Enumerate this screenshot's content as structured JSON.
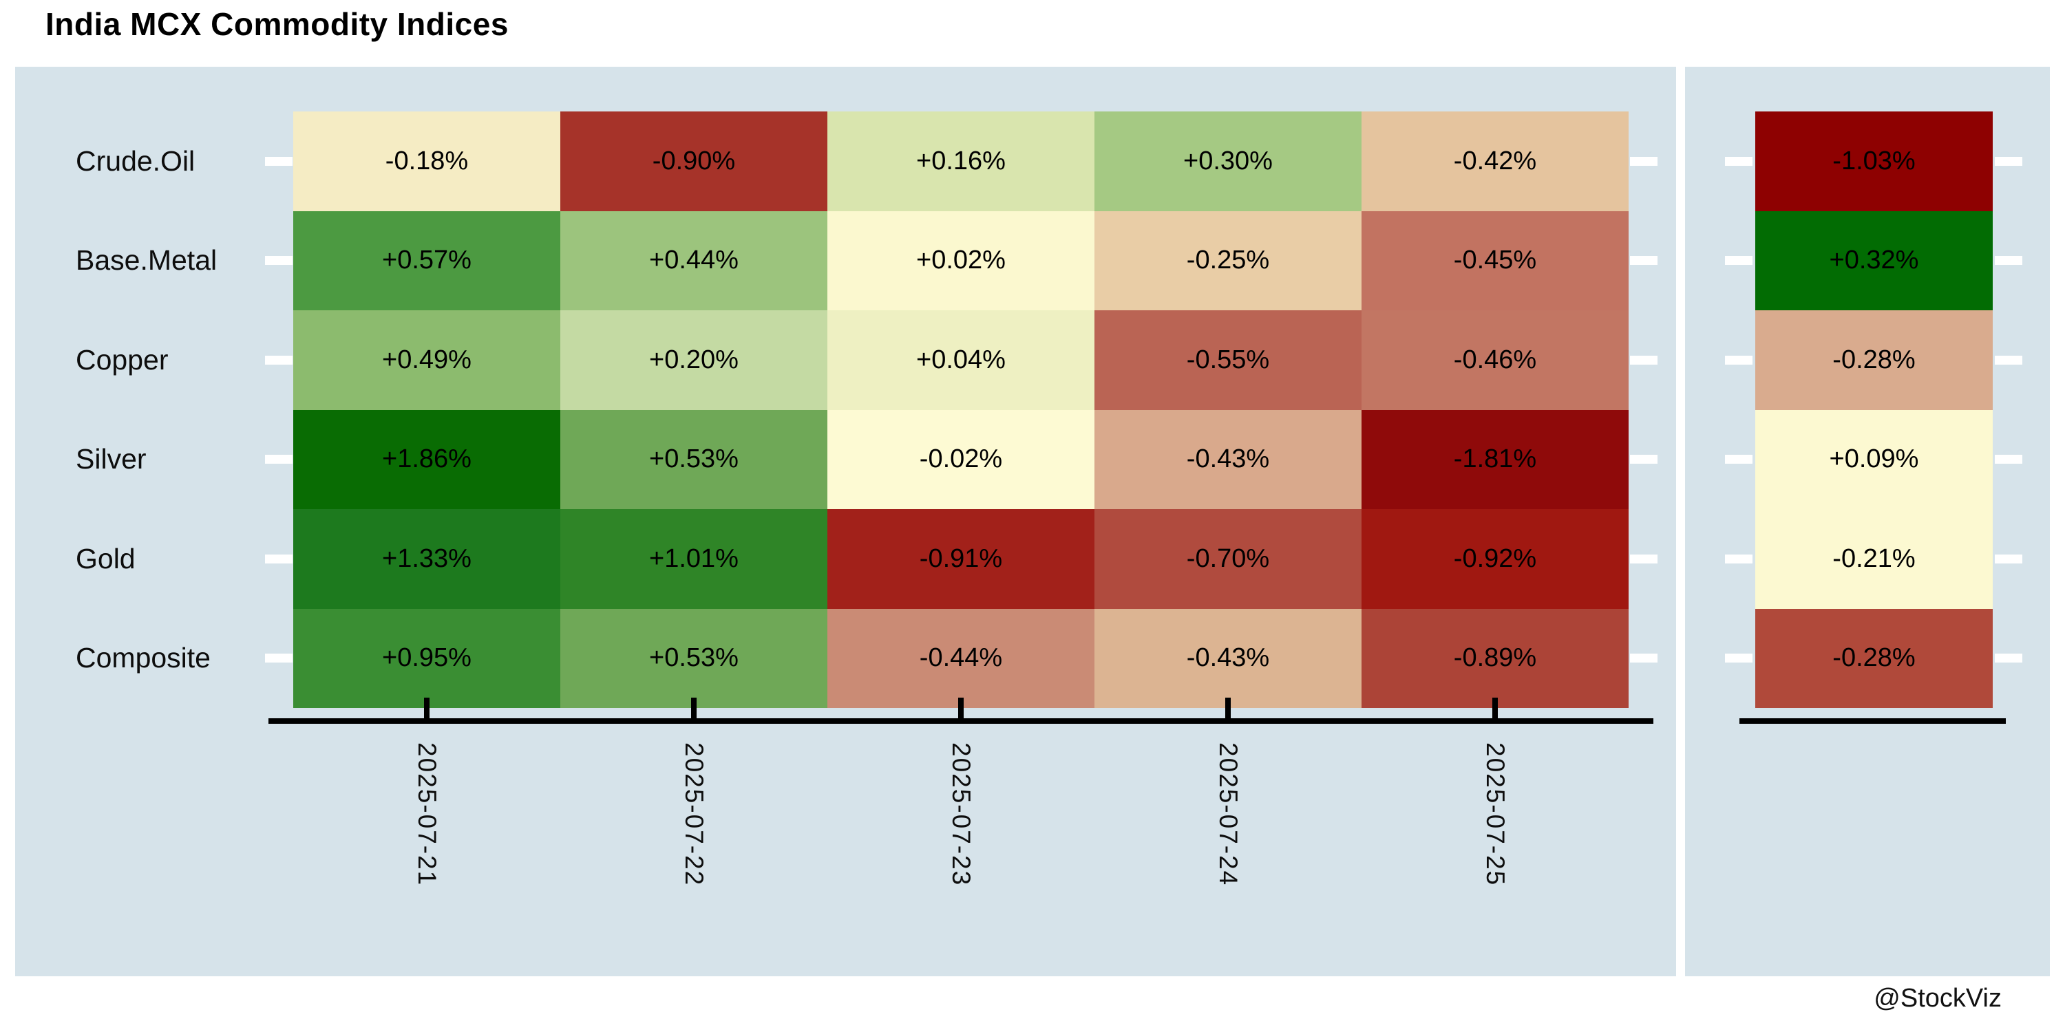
{
  "page": {
    "title": "India MCX Commodity Indices",
    "watermark": "@StockViz"
  },
  "chart_data": {
    "type": "heatmap",
    "title": "India MCX Commodity Indices",
    "x_labels": [
      "2025-07-21",
      "2025-07-22",
      "2025-07-23",
      "2025-07-24",
      "2025-07-25"
    ],
    "y_labels": [
      "Crude.Oil",
      "Base.Metal",
      "Copper",
      "Silver",
      "Gold",
      "Composite"
    ],
    "value_format": "signed_percent",
    "grid": false,
    "legend_position": "none",
    "colors": {
      "panel_background": "#d6e3ea",
      "axis": "#000000",
      "row_tick": "#ffffff",
      "cell_text": "#000000"
    },
    "rows": [
      {
        "label": "Crude.Oil",
        "cells": [
          {
            "text": "-0.18%",
            "value": -0.18,
            "color": "#f5ecc4"
          },
          {
            "text": "-0.90%",
            "value": -0.9,
            "color": "#a63329"
          },
          {
            "text": "+0.16%",
            "value": 0.16,
            "color": "#d9e5ae"
          },
          {
            "text": "+0.30%",
            "value": 0.3,
            "color": "#a5c983"
          },
          {
            "text": "-0.42%",
            "value": -0.42,
            "color": "#e5c49e"
          }
        ],
        "summary": {
          "text": "-1.03%",
          "value": -1.03,
          "color": "#8e0101"
        }
      },
      {
        "label": "Base.Metal",
        "cells": [
          {
            "text": "+0.57%",
            "value": 0.57,
            "color": "#4c9a41"
          },
          {
            "text": "+0.44%",
            "value": 0.44,
            "color": "#9cc47d"
          },
          {
            "text": "+0.02%",
            "value": 0.02,
            "color": "#fbf8cf"
          },
          {
            "text": "-0.25%",
            "value": -0.25,
            "color": "#e9cda6"
          },
          {
            "text": "-0.45%",
            "value": -0.45,
            "color": "#c27361"
          }
        ],
        "summary": {
          "text": "+0.32%",
          "value": 0.32,
          "color": "#026c03"
        }
      },
      {
        "label": "Copper",
        "cells": [
          {
            "text": "+0.49%",
            "value": 0.49,
            "color": "#8cbb6e"
          },
          {
            "text": "+0.20%",
            "value": 0.2,
            "color": "#c4daa3"
          },
          {
            "text": "+0.04%",
            "value": 0.04,
            "color": "#eef0c2"
          },
          {
            "text": "-0.55%",
            "value": -0.55,
            "color": "#ba6454"
          },
          {
            "text": "-0.46%",
            "value": -0.46,
            "color": "#c27663"
          }
        ],
        "summary": {
          "text": "-0.28%",
          "value": -0.28,
          "color": "#d9ab8e"
        }
      },
      {
        "label": "Silver",
        "cells": [
          {
            "text": "+1.86%",
            "value": 1.86,
            "color": "#096c03"
          },
          {
            "text": "+0.53%",
            "value": 0.53,
            "color": "#6fa857"
          },
          {
            "text": "-0.02%",
            "value": -0.02,
            "color": "#fdfad3"
          },
          {
            "text": "-0.43%",
            "value": -0.43,
            "color": "#d9a98c"
          },
          {
            "text": "-1.81%",
            "value": -1.81,
            "color": "#8f0a0a"
          }
        ],
        "summary": {
          "text": "+0.09%",
          "value": 0.09,
          "color": "#fcf9d1"
        }
      },
      {
        "label": "Gold",
        "cells": [
          {
            "text": "+1.33%",
            "value": 1.33,
            "color": "#1d7a1e"
          },
          {
            "text": "+1.01%",
            "value": 1.01,
            "color": "#2f8527"
          },
          {
            "text": "-0.91%",
            "value": -0.91,
            "color": "#a2211a"
          },
          {
            "text": "-0.70%",
            "value": -0.7,
            "color": "#b04b3e"
          },
          {
            "text": "-0.92%",
            "value": -0.92,
            "color": "#a01811"
          }
        ],
        "summary": {
          "text": "-0.21%",
          "value": -0.21,
          "color": "#fcf9d1"
        }
      },
      {
        "label": "Composite",
        "cells": [
          {
            "text": "+0.95%",
            "value": 0.95,
            "color": "#3a8e33"
          },
          {
            "text": "+0.53%",
            "value": 0.53,
            "color": "#6fa857"
          },
          {
            "text": "-0.44%",
            "value": -0.44,
            "color": "#ca8b75"
          },
          {
            "text": "-0.43%",
            "value": -0.43,
            "color": "#dcb492"
          },
          {
            "text": "-0.89%",
            "value": -0.89,
            "color": "#ac4437"
          }
        ],
        "summary": {
          "text": "-0.28%",
          "value": -0.28,
          "color": "#b0493a"
        }
      }
    ]
  }
}
